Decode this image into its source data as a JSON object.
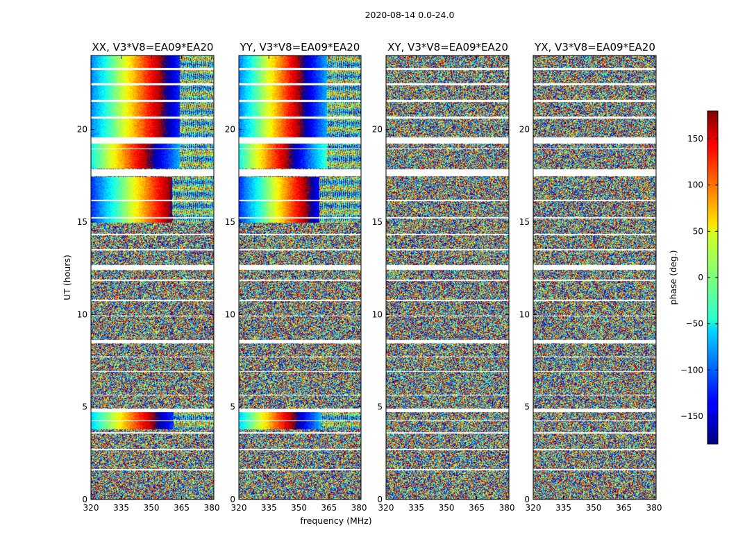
{
  "figure": {
    "suptitle": "2020-08-14 0.0-24.0",
    "xlabel": "frequency (MHz)",
    "ylabel": "UT (hours)"
  },
  "chart_data": {
    "type": "heatmap",
    "x": {
      "label": "frequency (MHz)",
      "range": [
        320,
        381
      ],
      "ticks": [
        320,
        335,
        350,
        365,
        380
      ]
    },
    "y": {
      "label": "UT (hours)",
      "range": [
        0,
        24
      ],
      "ticks": [
        0,
        5,
        10,
        15,
        20
      ]
    },
    "color": {
      "label": "phase (deg.)",
      "range": [
        -180,
        180
      ],
      "ticks": [
        -150,
        -100,
        -50,
        0,
        50,
        100,
        150
      ],
      "colormap": "jet"
    },
    "panels": [
      {
        "title": "XX, V3*V8=EA09*EA20",
        "pol": "XX",
        "coherent_slope": 1.0
      },
      {
        "title": "YY, V3*V8=EA09*EA20",
        "pol": "YY",
        "coherent_slope": 1.15
      },
      {
        "title": "XY, V3*V8=EA09*EA20",
        "pol": "XY",
        "coherent_slope": 0
      },
      {
        "title": "YX, V3*V8=EA09*EA20",
        "pol": "YX",
        "coherent_slope": 0
      }
    ],
    "flagged_gaps_hours": [
      [
        19.25,
        19.6
      ],
      [
        17.5,
        17.85
      ],
      [
        12.45,
        12.7
      ],
      [
        8.45,
        8.65
      ],
      [
        4.75,
        4.95
      ],
      [
        23.25,
        23.35
      ],
      [
        22.4,
        22.5
      ],
      [
        21.5,
        21.6
      ],
      [
        20.6,
        20.7
      ],
      [
        18.95,
        19.0
      ],
      [
        16.15,
        16.22
      ],
      [
        15.2,
        15.27
      ],
      [
        14.3,
        14.37
      ],
      [
        13.5,
        13.57
      ],
      [
        11.85,
        11.9
      ],
      [
        10.75,
        10.8
      ],
      [
        9.9,
        9.95
      ],
      [
        7.7,
        7.75
      ],
      [
        6.9,
        6.95
      ],
      [
        5.65,
        5.7
      ],
      [
        4.25,
        4.3
      ],
      [
        3.6,
        3.65
      ],
      [
        2.7,
        2.75
      ],
      [
        1.6,
        1.65
      ]
    ],
    "coherent_phase_segments": [
      {
        "pols": [
          "XX",
          "YY"
        ],
        "hours": [
          19.6,
          24
        ],
        "phase_at_320": -90,
        "smooth_until_mhz": 364
      },
      {
        "pols": [
          "XX",
          "YY"
        ],
        "hours": [
          17.9,
          19.25
        ],
        "phase_at_320": -40,
        "smooth_until_mhz": 364
      },
      {
        "pols": [
          "XX",
          "YY"
        ],
        "hours": [
          15.0,
          17.45
        ],
        "phase_at_320": -120,
        "smooth_until_mhz": 360
      },
      {
        "pols": [
          "XX",
          "YY"
        ],
        "hours": [
          3.8,
          4.75
        ],
        "phase_at_320": -60,
        "smooth_until_mhz": 361
      }
    ]
  }
}
